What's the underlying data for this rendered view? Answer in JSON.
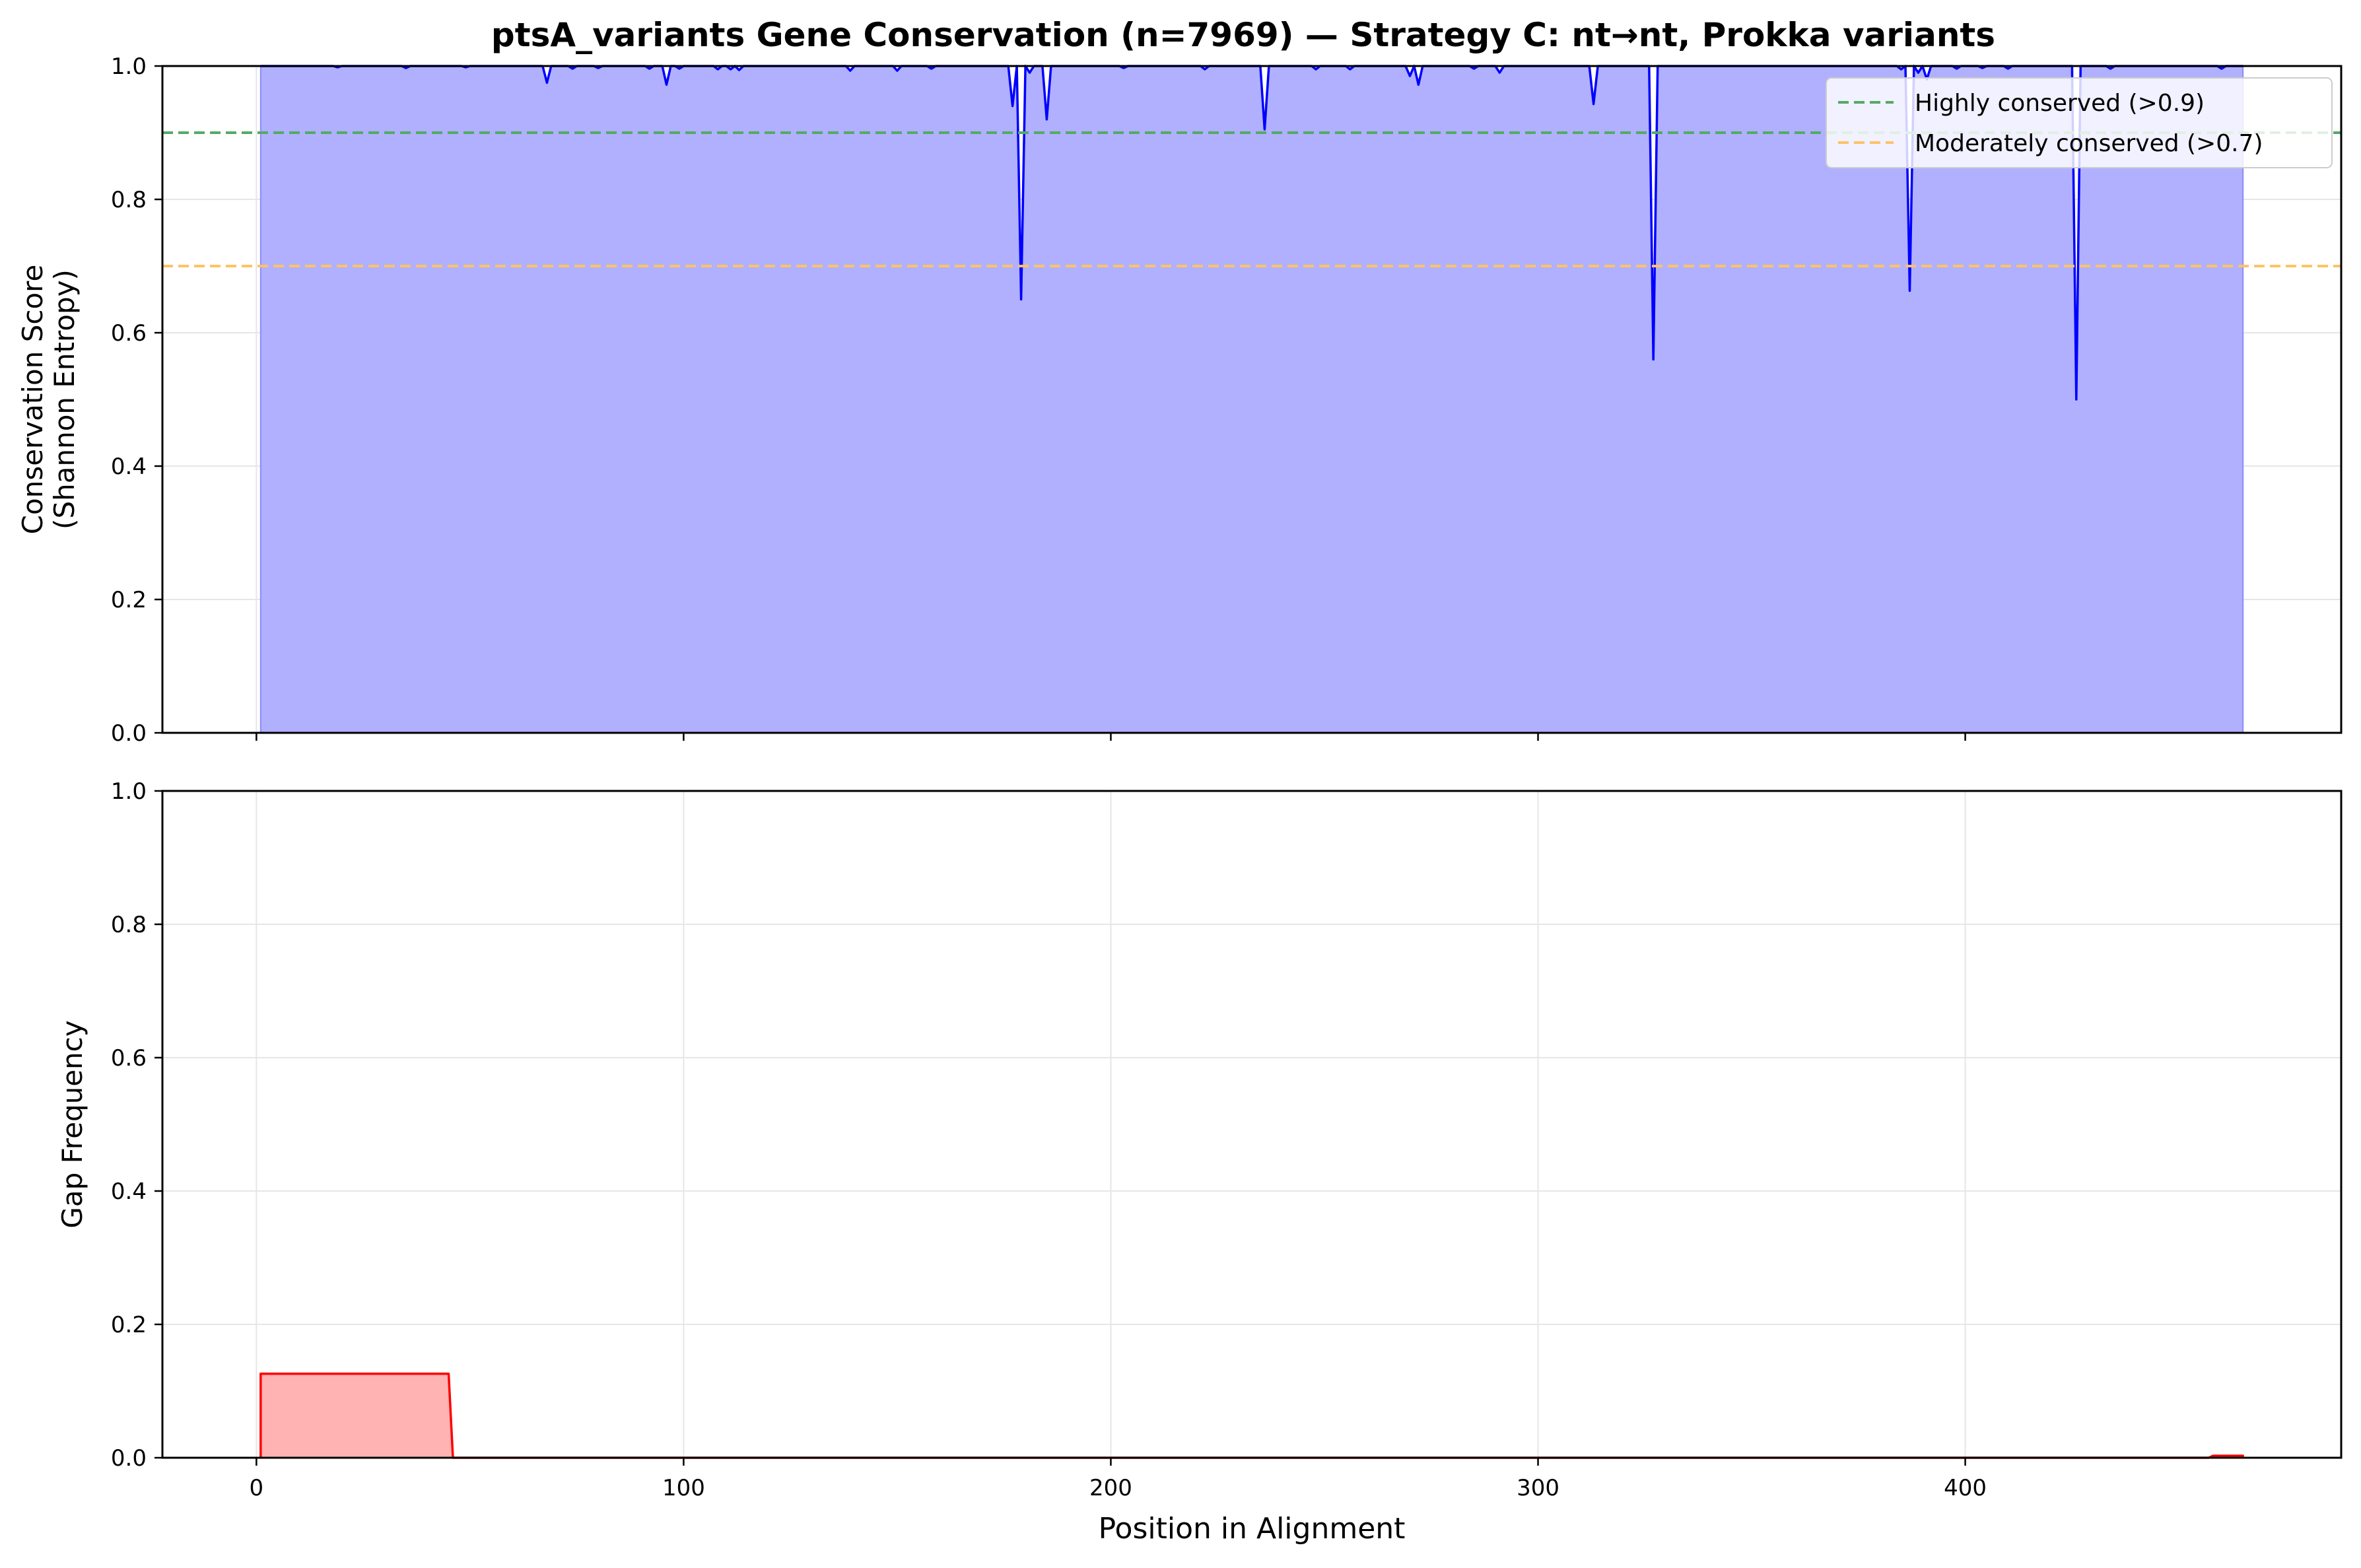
{
  "title": "ptsA_variants Gene Conservation (n=7969) — Strategy C: nt→nt, Prokka variants",
  "colors": {
    "conservation_line": "#0000ff",
    "conservation_fill": "#b0b0ff",
    "gap_line": "#ff0000",
    "gap_fill": "#ffb3b3",
    "high_threshold": "#55aa66",
    "moderate_threshold": "#ffc266",
    "grid": "#e6e6e6"
  },
  "chart_data": [
    {
      "type": "area",
      "panel": "top",
      "title": "ptsA_variants Gene Conservation (n=7969) — Strategy C: nt→nt, Prokka variants",
      "xlabel": "",
      "ylabel_lines": [
        "Conservation Score",
        "(Shannon Entropy)"
      ],
      "xlim": [
        -22,
        488
      ],
      "ylim": [
        0,
        1.0
      ],
      "y_ticks": [
        "0.0",
        "0.2",
        "0.4",
        "0.6",
        "0.8",
        "1.0"
      ],
      "y_tick_values": [
        0,
        0.2,
        0.4,
        0.6,
        0.8,
        1.0
      ],
      "x_tick_values": [
        0,
        100,
        200,
        300,
        400
      ],
      "grid": true,
      "series": [
        {
          "name": "Conservation",
          "baseline": 1.0,
          "x_range": [
            1,
            465
          ],
          "dips": [
            [
              19,
              0.998
            ],
            [
              35,
              0.997
            ],
            [
              49,
              0.998
            ],
            [
              68,
              0.975
            ],
            [
              74,
              0.996
            ],
            [
              80,
              0.997
            ],
            [
              92,
              0.996
            ],
            [
              96,
              0.972
            ],
            [
              99,
              0.996
            ],
            [
              108,
              0.995
            ],
            [
              111,
              0.995
            ],
            [
              113,
              0.994
            ],
            [
              139,
              0.993
            ],
            [
              150,
              0.993
            ],
            [
              158,
              0.996
            ],
            [
              177,
              0.94
            ],
            [
              179,
              0.65
            ],
            [
              181,
              0.99
            ],
            [
              185,
              0.92
            ],
            [
              203,
              0.997
            ],
            [
              222,
              0.995
            ],
            [
              236,
              0.905
            ],
            [
              248,
              0.995
            ],
            [
              256,
              0.995
            ],
            [
              270,
              0.985
            ],
            [
              272,
              0.972
            ],
            [
              285,
              0.996
            ],
            [
              291,
              0.99
            ],
            [
              313,
              0.943
            ],
            [
              327,
              0.56
            ],
            [
              385,
              0.995
            ],
            [
              387,
              0.663
            ],
            [
              389,
              0.99
            ],
            [
              391,
              0.98
            ],
            [
              398,
              0.996
            ],
            [
              404,
              0.997
            ],
            [
              410,
              0.996
            ],
            [
              426,
              0.5
            ],
            [
              434,
              0.996
            ],
            [
              460,
              0.996
            ]
          ]
        }
      ],
      "thresholds": [
        {
          "label": "Highly conserved (>0.9)",
          "value": 0.9
        },
        {
          "label": "Moderately conserved (>0.7)",
          "value": 0.7
        }
      ],
      "legend_position": "top-right"
    },
    {
      "type": "area",
      "panel": "bottom",
      "xlabel": "Position in Alignment",
      "ylabel": "Gap Frequency",
      "xlim": [
        -22,
        488
      ],
      "ylim": [
        0,
        1.0
      ],
      "x_ticks": [
        "0",
        "100",
        "200",
        "300",
        "400"
      ],
      "x_tick_values": [
        0,
        100,
        200,
        300,
        400
      ],
      "y_ticks": [
        "0.0",
        "0.2",
        "0.4",
        "0.6",
        "0.8",
        "1.0"
      ],
      "y_tick_values": [
        0,
        0.2,
        0.4,
        0.6,
        0.8,
        1.0
      ],
      "grid": true,
      "series": [
        {
          "name": "Gap Frequency",
          "points": [
            [
              1,
              0
            ],
            [
              1,
              0.126
            ],
            [
              45,
              0.126
            ],
            [
              46,
              0
            ],
            [
              457,
              0
            ],
            [
              458,
              0.003
            ],
            [
              465,
              0.003
            ],
            [
              465,
              0
            ]
          ]
        }
      ]
    }
  ]
}
